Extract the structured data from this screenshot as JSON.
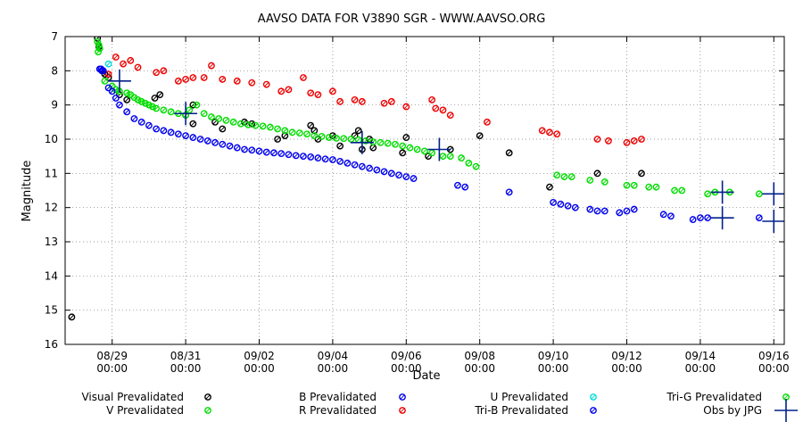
{
  "chart_data": {
    "type": "scatter",
    "title": "AAVSO DATA FOR V3890 SGR - WWW.AAVSO.ORG",
    "xlabel": "Date",
    "ylabel": "Magnitude",
    "x_unit": "days",
    "xlim": [
      0,
      9.2
    ],
    "ylim": [
      16,
      7
    ],
    "y_inverted": true,
    "grid": true,
    "yticks": [
      7,
      8,
      9,
      10,
      11,
      12,
      13,
      14,
      15,
      16
    ],
    "xticks": [
      {
        "x": 0.5,
        "date": "08/29",
        "time": "00:00"
      },
      {
        "x": 1.5,
        "date": "08/31",
        "time": "00:00"
      },
      {
        "x": 2.5,
        "date": "09/02",
        "time": "00:00"
      },
      {
        "x": 3.5,
        "date": "09/04",
        "time": "00:00"
      },
      {
        "x": 4.5,
        "date": "09/06",
        "time": "00:00"
      },
      {
        "x": 5.5,
        "date": "09/08",
        "time": "00:00"
      },
      {
        "x": 6.5,
        "date": "09/10",
        "time": "00:00"
      },
      {
        "x": 7.5,
        "date": "09/12",
        "time": "00:00"
      },
      {
        "x": 8.5,
        "date": "09/14",
        "time": "00:00"
      },
      {
        "x": 9.5,
        "date": "09/16",
        "time": "00:00"
      }
    ],
    "legend": [
      {
        "key": "visual",
        "label": "Visual Prevalidated",
        "marker": "circle",
        "color": "#000000"
      },
      {
        "key": "v",
        "label": "V Prevalidated",
        "marker": "circle",
        "color": "#00dd00"
      },
      {
        "key": "b",
        "label": "B Prevalidated",
        "marker": "circle",
        "color": "#0000ee"
      },
      {
        "key": "r",
        "label": "R Prevalidated",
        "marker": "circle",
        "color": "#ee0000"
      },
      {
        "key": "u",
        "label": "U Prevalidated",
        "marker": "circle",
        "color": "#00dddd"
      },
      {
        "key": "trib",
        "label": "Tri-B Prevalidated",
        "marker": "circle",
        "color": "#0000ee"
      },
      {
        "key": "trig",
        "label": "Tri-G Prevalidated",
        "marker": "circle",
        "color": "#00dd00"
      },
      {
        "key": "jpg",
        "label": "Obs by JPG",
        "marker": "cross",
        "color": "#00208a"
      }
    ],
    "series": [
      {
        "name": "Visual Prevalidated",
        "key": "visual",
        "color": "#000000",
        "points": [
          [
            -0.05,
            15.2
          ],
          [
            0.3,
            7.05
          ],
          [
            0.32,
            7.3
          ],
          [
            0.4,
            8.1
          ],
          [
            0.45,
            8.2
          ],
          [
            0.6,
            8.7
          ],
          [
            0.7,
            8.85
          ],
          [
            1.08,
            8.8
          ],
          [
            1.15,
            8.7
          ],
          [
            1.5,
            9.3
          ],
          [
            1.6,
            9.0
          ],
          [
            1.6,
            9.55
          ],
          [
            1.9,
            9.5
          ],
          [
            2.0,
            9.7
          ],
          [
            2.3,
            9.5
          ],
          [
            2.4,
            9.55
          ],
          [
            2.75,
            10.0
          ],
          [
            2.85,
            9.9
          ],
          [
            3.2,
            9.6
          ],
          [
            3.25,
            9.75
          ],
          [
            3.3,
            10.0
          ],
          [
            3.5,
            9.9
          ],
          [
            3.6,
            10.2
          ],
          [
            3.8,
            9.9
          ],
          [
            3.85,
            9.75
          ],
          [
            3.9,
            10.3
          ],
          [
            4.0,
            10.0
          ],
          [
            4.05,
            10.25
          ],
          [
            4.45,
            10.4
          ],
          [
            4.5,
            9.95
          ],
          [
            4.8,
            10.5
          ],
          [
            5.1,
            10.3
          ],
          [
            5.5,
            9.9
          ],
          [
            5.9,
            10.4
          ],
          [
            6.45,
            11.4
          ],
          [
            7.1,
            11.0
          ],
          [
            7.7,
            11.0
          ]
        ]
      },
      {
        "name": "V Prevalidated",
        "key": "v",
        "color": "#00dd00",
        "points": [
          [
            0.3,
            7.15
          ],
          [
            0.32,
            7.25
          ],
          [
            0.33,
            7.35
          ],
          [
            0.31,
            7.45
          ],
          [
            0.4,
            8.3
          ],
          [
            0.5,
            8.45
          ],
          [
            0.55,
            8.55
          ],
          [
            0.6,
            8.6
          ],
          [
            0.7,
            8.65
          ],
          [
            0.75,
            8.7
          ],
          [
            0.8,
            8.78
          ],
          [
            0.85,
            8.85
          ],
          [
            0.9,
            8.9
          ],
          [
            0.95,
            8.95
          ],
          [
            1.0,
            9.0
          ],
          [
            1.05,
            9.05
          ],
          [
            1.1,
            9.1
          ],
          [
            1.2,
            9.15
          ],
          [
            1.3,
            9.2
          ],
          [
            1.4,
            9.25
          ],
          [
            1.5,
            9.3
          ],
          [
            1.55,
            9.15
          ],
          [
            1.65,
            9.0
          ],
          [
            1.75,
            9.25
          ],
          [
            1.85,
            9.35
          ],
          [
            1.95,
            9.4
          ],
          [
            2.05,
            9.45
          ],
          [
            2.15,
            9.5
          ],
          [
            2.25,
            9.55
          ],
          [
            2.35,
            9.58
          ],
          [
            2.45,
            9.6
          ],
          [
            2.55,
            9.62
          ],
          [
            2.65,
            9.65
          ],
          [
            2.75,
            9.7
          ],
          [
            2.85,
            9.75
          ],
          [
            2.95,
            9.8
          ],
          [
            3.05,
            9.82
          ],
          [
            3.15,
            9.85
          ],
          [
            3.25,
            9.9
          ],
          [
            3.35,
            9.92
          ],
          [
            3.45,
            9.95
          ],
          [
            3.55,
            9.97
          ],
          [
            3.65,
            9.98
          ],
          [
            3.75,
            10.0
          ],
          [
            3.85,
            10.02
          ],
          [
            3.95,
            10.05
          ],
          [
            4.05,
            10.08
          ],
          [
            4.15,
            10.1
          ],
          [
            4.25,
            10.12
          ],
          [
            4.35,
            10.15
          ],
          [
            4.45,
            10.2
          ],
          [
            4.55,
            10.25
          ],
          [
            4.65,
            10.3
          ],
          [
            4.75,
            10.35
          ],
          [
            4.85,
            10.4
          ],
          [
            5.0,
            10.5
          ],
          [
            5.1,
            10.5
          ],
          [
            5.25,
            10.55
          ],
          [
            5.35,
            10.7
          ],
          [
            5.45,
            10.8
          ]
        ]
      },
      {
        "name": "B Prevalidated",
        "key": "b",
        "color": "#0000ee",
        "points": [
          [
            0.33,
            7.95
          ],
          [
            0.36,
            8.0
          ],
          [
            0.45,
            8.5
          ],
          [
            0.5,
            8.6
          ],
          [
            0.55,
            8.8
          ],
          [
            0.6,
            9.0
          ],
          [
            0.7,
            9.2
          ],
          [
            0.8,
            9.4
          ],
          [
            0.9,
            9.5
          ],
          [
            1.0,
            9.6
          ],
          [
            1.1,
            9.7
          ],
          [
            1.2,
            9.75
          ],
          [
            1.3,
            9.8
          ],
          [
            1.4,
            9.85
          ],
          [
            1.5,
            9.9
          ],
          [
            1.6,
            9.95
          ],
          [
            1.7,
            10.0
          ],
          [
            1.8,
            10.05
          ],
          [
            1.9,
            10.1
          ],
          [
            2.0,
            10.15
          ],
          [
            2.1,
            10.2
          ],
          [
            2.2,
            10.25
          ],
          [
            2.3,
            10.3
          ],
          [
            2.4,
            10.32
          ],
          [
            2.5,
            10.35
          ],
          [
            2.6,
            10.38
          ],
          [
            2.7,
            10.4
          ],
          [
            2.8,
            10.42
          ],
          [
            2.9,
            10.45
          ],
          [
            3.0,
            10.48
          ],
          [
            3.1,
            10.5
          ],
          [
            3.2,
            10.52
          ],
          [
            3.3,
            10.55
          ],
          [
            3.4,
            10.58
          ],
          [
            3.5,
            10.6
          ],
          [
            3.6,
            10.65
          ],
          [
            3.7,
            10.7
          ],
          [
            3.8,
            10.75
          ],
          [
            3.9,
            10.8
          ],
          [
            4.0,
            10.85
          ],
          [
            4.1,
            10.9
          ],
          [
            4.2,
            10.95
          ],
          [
            4.3,
            11.0
          ],
          [
            4.4,
            11.05
          ],
          [
            4.5,
            11.1
          ],
          [
            4.6,
            11.15
          ],
          [
            5.2,
            11.35
          ],
          [
            5.3,
            11.4
          ],
          [
            5.9,
            11.55
          ],
          [
            6.5,
            11.85
          ],
          [
            6.6,
            11.9
          ],
          [
            6.7,
            11.95
          ],
          [
            6.8,
            12.0
          ],
          [
            7.0,
            12.05
          ],
          [
            7.1,
            12.1
          ],
          [
            7.2,
            12.1
          ],
          [
            7.4,
            12.15
          ],
          [
            7.5,
            12.1
          ],
          [
            7.6,
            12.05
          ],
          [
            8.0,
            12.2
          ],
          [
            8.1,
            12.25
          ],
          [
            8.4,
            12.35
          ],
          [
            8.5,
            12.3
          ],
          [
            8.6,
            12.3
          ]
        ]
      },
      {
        "name": "R Prevalidated",
        "key": "r",
        "color": "#ee0000",
        "points": [
          [
            0.45,
            8.1
          ],
          [
            0.55,
            7.6
          ],
          [
            0.65,
            7.8
          ],
          [
            0.75,
            7.7
          ],
          [
            0.85,
            7.9
          ],
          [
            1.1,
            8.05
          ],
          [
            1.2,
            8.0
          ],
          [
            1.4,
            8.3
          ],
          [
            1.5,
            8.25
          ],
          [
            1.6,
            8.2
          ],
          [
            1.75,
            8.2
          ],
          [
            1.85,
            7.85
          ],
          [
            2.0,
            8.25
          ],
          [
            2.2,
            8.3
          ],
          [
            2.4,
            8.35
          ],
          [
            2.6,
            8.4
          ],
          [
            2.8,
            8.6
          ],
          [
            2.9,
            8.55
          ],
          [
            3.1,
            8.2
          ],
          [
            3.2,
            8.65
          ],
          [
            3.3,
            8.7
          ],
          [
            3.5,
            8.6
          ],
          [
            3.6,
            8.9
          ],
          [
            3.8,
            8.85
          ],
          [
            3.9,
            8.9
          ],
          [
            4.2,
            8.95
          ],
          [
            4.3,
            8.9
          ],
          [
            4.5,
            9.05
          ],
          [
            4.85,
            8.85
          ],
          [
            4.9,
            9.1
          ],
          [
            5.0,
            9.15
          ],
          [
            5.1,
            9.3
          ],
          [
            5.6,
            9.5
          ],
          [
            6.35,
            9.75
          ],
          [
            6.45,
            9.8
          ],
          [
            6.55,
            9.85
          ],
          [
            7.1,
            10.0
          ],
          [
            7.25,
            10.05
          ],
          [
            7.5,
            10.1
          ],
          [
            7.6,
            10.05
          ],
          [
            7.7,
            10.0
          ]
        ]
      },
      {
        "name": "U Prevalidated",
        "key": "u",
        "color": "#00dddd",
        "points": [
          [
            0.45,
            7.8
          ]
        ]
      },
      {
        "name": "Tri-B Prevalidated",
        "key": "trib",
        "color": "#0000ee",
        "points": [
          [
            0.35,
            7.95
          ],
          [
            0.38,
            8.0
          ],
          [
            9.3,
            12.3
          ]
        ]
      },
      {
        "name": "Tri-G Prevalidated",
        "key": "trig",
        "color": "#00dd00",
        "points": [
          [
            6.55,
            11.05
          ],
          [
            6.65,
            11.1
          ],
          [
            6.75,
            11.1
          ],
          [
            7.0,
            11.2
          ],
          [
            7.2,
            11.25
          ],
          [
            7.5,
            11.35
          ],
          [
            7.6,
            11.35
          ],
          [
            7.8,
            11.4
          ],
          [
            7.9,
            11.4
          ],
          [
            8.15,
            11.5
          ],
          [
            8.25,
            11.5
          ],
          [
            8.6,
            11.6
          ],
          [
            8.7,
            11.55
          ],
          [
            8.9,
            11.55
          ],
          [
            9.3,
            11.6
          ]
        ]
      },
      {
        "name": "Obs by JPG",
        "key": "jpg",
        "color": "#00208a",
        "points": [
          [
            0.6,
            8.3
          ],
          [
            1.5,
            9.25
          ],
          [
            3.9,
            10.1
          ],
          [
            4.95,
            10.3
          ],
          [
            8.8,
            11.55
          ],
          [
            8.8,
            12.3
          ],
          [
            9.5,
            11.6
          ],
          [
            9.5,
            12.4
          ]
        ]
      }
    ]
  }
}
